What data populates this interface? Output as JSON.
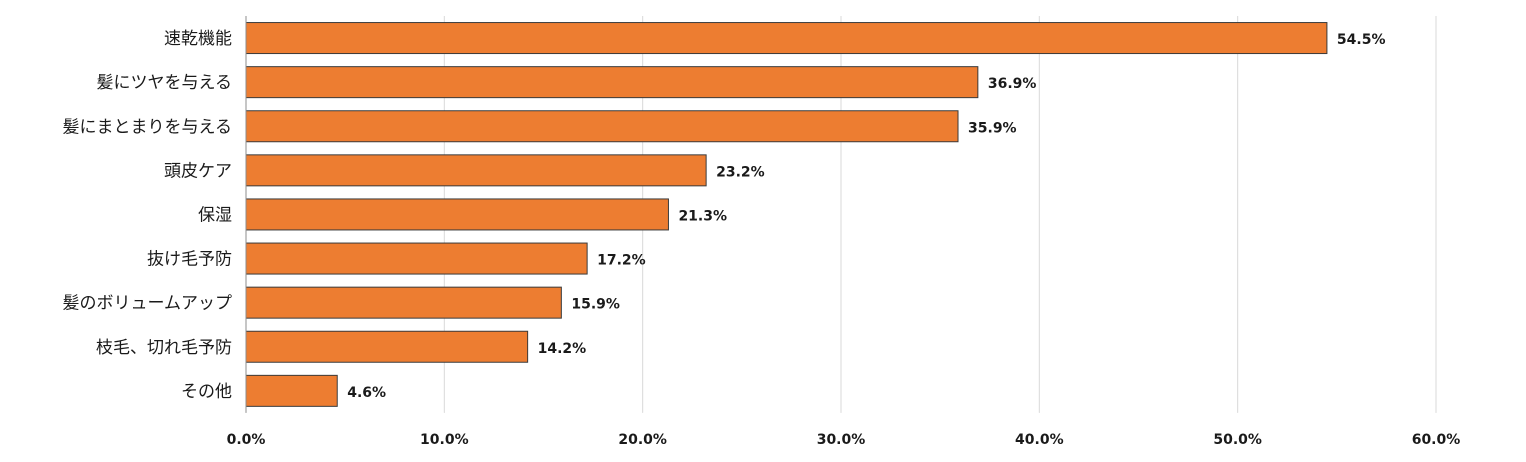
{
  "chart_data": {
    "type": "bar",
    "orientation": "horizontal",
    "categories": [
      "速乾機能",
      "髪にツヤを与える",
      "髪にまとまりを与える",
      "頭皮ケア",
      "保湿",
      "抜け毛予防",
      "髪のボリュームアップ",
      "枝毛、切れ毛予防",
      "その他"
    ],
    "values": [
      54.5,
      36.9,
      35.9,
      23.2,
      21.3,
      17.2,
      15.9,
      14.2,
      4.6
    ],
    "value_labels": [
      "54.5%",
      "36.9%",
      "35.9%",
      "23.2%",
      "21.3%",
      "17.2%",
      "15.9%",
      "14.2%",
      "4.6%"
    ],
    "x_ticks": [
      "0.0%",
      "10.0%",
      "20.0%",
      "30.0%",
      "40.0%",
      "50.0%",
      "60.0%"
    ],
    "xlim": [
      0,
      60
    ],
    "title": "",
    "xlabel": "",
    "ylabel": "",
    "grid": "vertical",
    "legend": "none",
    "bar_color": "#ED7D31"
  }
}
